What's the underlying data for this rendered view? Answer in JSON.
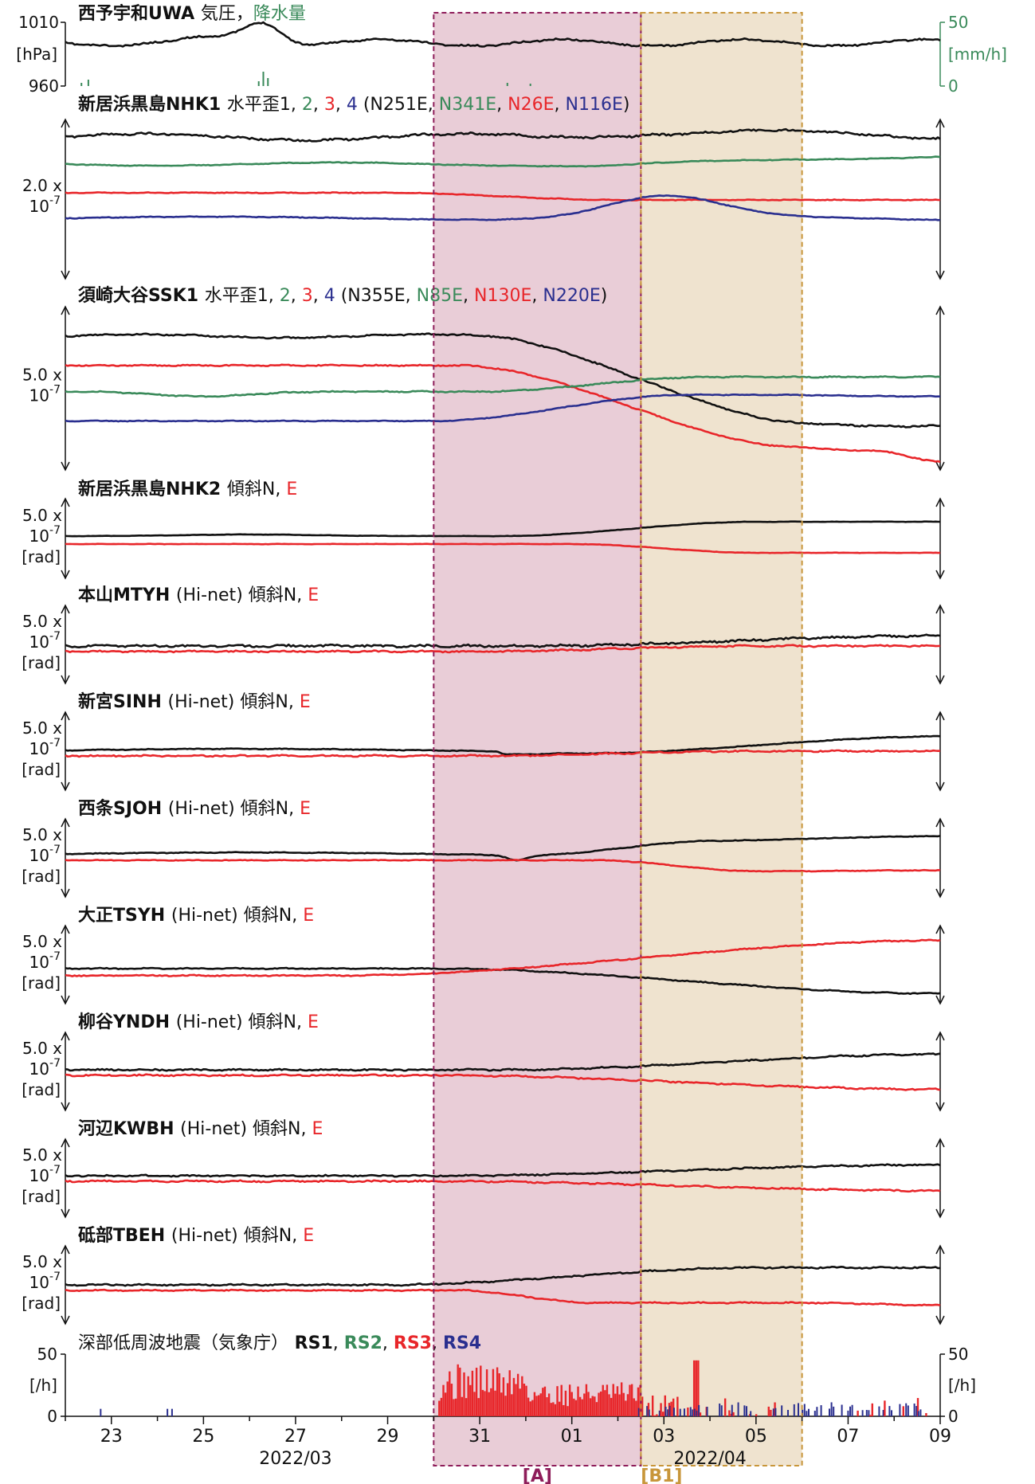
{
  "colors": {
    "c1": "#111111",
    "c2": "#3a8a5a",
    "c3": "#e8262a",
    "c4": "#2a2f8f",
    "rain": "#3a8a5a",
    "shadeA": "#e9cdd7",
    "shadeB": "#efe3cf",
    "borderA": "#8e1d5a",
    "borderB": "#c8963a"
  },
  "chart_data": {
    "type": "line",
    "x_start": "2022-03-22",
    "x_end": "2022-04-10",
    "x_ticks": [
      "23",
      "25",
      "27",
      "29",
      "31",
      "01",
      "03",
      "05",
      "07",
      "09"
    ],
    "x_month_labels": [
      "2022/03",
      "2022/04"
    ],
    "periods": [
      {
        "label": "[A]",
        "start": "2022-03-30",
        "end": "2022-04-03 12:00"
      },
      {
        "label": "[B1]",
        "start": "2022-04-03 12:00",
        "end": "2022-04-07"
      }
    ],
    "panels": [
      {
        "id": "uwa",
        "station": "西予宇和UWA",
        "parts": [
          {
            "t": "気圧",
            "c": "c1"
          },
          {
            "t": "，",
            "c": "c1"
          },
          {
            "t": "降水量",
            "c": "c2"
          }
        ],
        "left_ticks": [
          "1010",
          "960"
        ],
        "left_unit": "[hPa]",
        "right_ticks": [
          "50",
          "0"
        ],
        "right_unit": "[mm/h]",
        "left_ylim": [
          960,
          1010
        ],
        "right_ylim": [
          0,
          50
        ]
      },
      {
        "id": "nhk1",
        "station": "新居浜黒島NHK1",
        "parts": [
          {
            "t": "水平歪1",
            "c": "c1"
          },
          {
            "t": ", ",
            "c": "c1"
          },
          {
            "t": "2",
            "c": "c2"
          },
          {
            "t": ", ",
            "c": "c1"
          },
          {
            "t": "3",
            "c": "c3"
          },
          {
            "t": ", ",
            "c": "c1"
          },
          {
            "t": "4",
            "c": "c4"
          },
          {
            "t": " (",
            "c": "c1"
          },
          {
            "t": "N251E",
            "c": "c1"
          },
          {
            "t": ", ",
            "c": "c1"
          },
          {
            "t": "N341E",
            "c": "c2"
          },
          {
            "t": ", ",
            "c": "c1"
          },
          {
            "t": "N26E",
            "c": "c3"
          },
          {
            "t": ", ",
            "c": "c1"
          },
          {
            "t": "N116E",
            "c": "c4"
          },
          {
            "t": ")",
            "c": "c1"
          }
        ],
        "scale": [
          "2.0 x",
          "10",
          "-7"
        ]
      },
      {
        "id": "ssk1",
        "station": "須崎大谷SSK1",
        "parts": [
          {
            "t": "水平歪1",
            "c": "c1"
          },
          {
            "t": ", ",
            "c": "c1"
          },
          {
            "t": "2",
            "c": "c2"
          },
          {
            "t": ", ",
            "c": "c1"
          },
          {
            "t": "3",
            "c": "c3"
          },
          {
            "t": ", ",
            "c": "c1"
          },
          {
            "t": "4",
            "c": "c4"
          },
          {
            "t": " (",
            "c": "c1"
          },
          {
            "t": "N355E",
            "c": "c1"
          },
          {
            "t": ", ",
            "c": "c1"
          },
          {
            "t": "N85E",
            "c": "c2"
          },
          {
            "t": ", ",
            "c": "c1"
          },
          {
            "t": "N130E",
            "c": "c3"
          },
          {
            "t": ", ",
            "c": "c1"
          },
          {
            "t": "N220E",
            "c": "c4"
          },
          {
            "t": ")",
            "c": "c1"
          }
        ],
        "scale": [
          "5.0 x",
          "10",
          "-7"
        ]
      },
      {
        "id": "nhk2",
        "station": "新居浜黒島NHK2",
        "parts": [
          {
            "t": "傾斜N",
            "c": "c1"
          },
          {
            "t": ", ",
            "c": "c1"
          },
          {
            "t": "E",
            "c": "c3"
          }
        ],
        "scale": [
          "5.0 x",
          "10",
          "-7",
          "[rad]"
        ]
      },
      {
        "id": "mtyh",
        "station": "本山MTYH",
        "parts": [
          {
            "t": "(Hi-net) 傾斜N",
            "c": "c1"
          },
          {
            "t": ", ",
            "c": "c1"
          },
          {
            "t": "E",
            "c": "c3"
          }
        ],
        "scale": [
          "5.0 x",
          "10",
          "-7",
          "[rad]"
        ]
      },
      {
        "id": "sinh",
        "station": "新宮SINH",
        "parts": [
          {
            "t": "(Hi-net) 傾斜N",
            "c": "c1"
          },
          {
            "t": ", ",
            "c": "c1"
          },
          {
            "t": "E",
            "c": "c3"
          }
        ],
        "scale": [
          "5.0 x",
          "10",
          "-7",
          "[rad]"
        ]
      },
      {
        "id": "sjoh",
        "station": "西条SJOH",
        "parts": [
          {
            "t": "(Hi-net) 傾斜N",
            "c": "c1"
          },
          {
            "t": ", ",
            "c": "c1"
          },
          {
            "t": "E",
            "c": "c3"
          }
        ],
        "scale": [
          "5.0 x",
          "10",
          "-7",
          "[rad]"
        ]
      },
      {
        "id": "tsyh",
        "station": "大正TSYH",
        "parts": [
          {
            "t": "(Hi-net) 傾斜N",
            "c": "c1"
          },
          {
            "t": ", ",
            "c": "c1"
          },
          {
            "t": "E",
            "c": "c3"
          }
        ],
        "scale": [
          "5.0 x",
          "10",
          "-7",
          "[rad]"
        ]
      },
      {
        "id": "yndh",
        "station": "柳谷YNDH",
        "parts": [
          {
            "t": "(Hi-net) 傾斜N",
            "c": "c1"
          },
          {
            "t": ", ",
            "c": "c1"
          },
          {
            "t": "E",
            "c": "c3"
          }
        ],
        "scale": [
          "5.0 x",
          "10",
          "-7",
          "[rad]"
        ]
      },
      {
        "id": "kwbh",
        "station": "河辺KWBH",
        "parts": [
          {
            "t": "(Hi-net) 傾斜N",
            "c": "c1"
          },
          {
            "t": ", ",
            "c": "c1"
          },
          {
            "t": "E",
            "c": "c3"
          }
        ],
        "scale": [
          "5.0 x",
          "10",
          "-7",
          "[rad]"
        ]
      },
      {
        "id": "tbeh",
        "station": "砥部TBEH",
        "parts": [
          {
            "t": "(Hi-net) 傾斜N",
            "c": "c1"
          },
          {
            "t": ", ",
            "c": "c1"
          },
          {
            "t": "E",
            "c": "c3"
          }
        ],
        "scale": [
          "5.0 x",
          "10",
          "-7",
          "[rad]"
        ]
      },
      {
        "id": "lfe",
        "station": "",
        "parts": [
          {
            "t": "深部低周波地震（気象庁）",
            "c": "c1",
            "plain": true
          },
          {
            "t": "  RS1",
            "c": "c1",
            "bold": true
          },
          {
            "t": ", ",
            "c": "c1"
          },
          {
            "t": "RS2",
            "c": "c2",
            "bold": true
          },
          {
            "t": ", ",
            "c": "c1"
          },
          {
            "t": "RS3",
            "c": "c3",
            "bold": true
          },
          {
            "t": ", ",
            "c": "c1"
          },
          {
            "t": "RS4",
            "c": "c4",
            "bold": true
          }
        ],
        "left_ticks": [
          "50",
          "[/h]",
          "0"
        ],
        "right_ticks": [
          "50",
          "[/h]",
          "0"
        ],
        "ylim": [
          0,
          50
        ]
      }
    ]
  }
}
